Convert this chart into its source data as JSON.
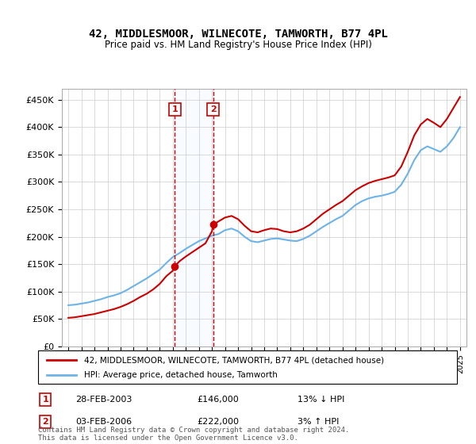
{
  "title": "42, MIDDLESMOOR, WILNECOTE, TAMWORTH, B77 4PL",
  "subtitle": "Price paid vs. HM Land Registry's House Price Index (HPI)",
  "legend_line1": "42, MIDDLESMOOR, WILNECOTE, TAMWORTH, B77 4PL (detached house)",
  "legend_line2": "HPI: Average price, detached house, Tamworth",
  "sale1_label": "1",
  "sale1_date": "28-FEB-2003",
  "sale1_price": "£146,000",
  "sale1_hpi": "13% ↓ HPI",
  "sale1_year": 2003.15,
  "sale1_value": 146000,
  "sale2_label": "2",
  "sale2_date": "03-FEB-2006",
  "sale2_price": "£222,000",
  "sale2_hpi": "3% ↑ HPI",
  "sale2_year": 2006.09,
  "sale2_value": 222000,
  "footer": "Contains HM Land Registry data © Crown copyright and database right 2024.\nThis data is licensed under the Open Government Licence v3.0.",
  "hpi_color": "#6db3e8",
  "price_color": "#cc0000",
  "marker_box_color": "#cc0000",
  "sale_marker_color": "#cc0000",
  "bg_color": "#ffffff",
  "grid_color": "#cccccc",
  "highlight_fill": "#ddeeff",
  "ylim": [
    0,
    470000
  ],
  "xlim": [
    1994.5,
    2025.5
  ],
  "hpi_data": {
    "years": [
      1995,
      1995.5,
      1996,
      1996.5,
      1997,
      1997.5,
      1998,
      1998.5,
      1999,
      1999.5,
      2000,
      2000.5,
      2001,
      2001.5,
      2002,
      2002.5,
      2003,
      2003.5,
      2004,
      2004.5,
      2005,
      2005.5,
      2006,
      2006.5,
      2007,
      2007.5,
      2008,
      2008.5,
      2009,
      2009.5,
      2010,
      2010.5,
      2011,
      2011.5,
      2012,
      2012.5,
      2013,
      2013.5,
      2014,
      2014.5,
      2015,
      2015.5,
      2016,
      2016.5,
      2017,
      2017.5,
      2018,
      2018.5,
      2019,
      2019.5,
      2020,
      2020.5,
      2021,
      2021.5,
      2022,
      2022.5,
      2023,
      2023.5,
      2024,
      2024.5,
      2025
    ],
    "values": [
      75000,
      76000,
      78000,
      80000,
      83000,
      86000,
      90000,
      93000,
      97000,
      103000,
      110000,
      117000,
      124000,
      132000,
      140000,
      152000,
      163000,
      170000,
      178000,
      185000,
      192000,
      197000,
      202000,
      205000,
      212000,
      215000,
      210000,
      200000,
      192000,
      190000,
      193000,
      196000,
      197000,
      195000,
      193000,
      192000,
      196000,
      202000,
      210000,
      218000,
      225000,
      232000,
      238000,
      248000,
      258000,
      265000,
      270000,
      273000,
      275000,
      278000,
      282000,
      295000,
      315000,
      340000,
      358000,
      365000,
      360000,
      355000,
      365000,
      380000,
      400000
    ]
  },
  "price_data": {
    "years": [
      1995,
      1995.5,
      1996,
      1996.5,
      1997,
      1997.5,
      1998,
      1998.5,
      1999,
      1999.5,
      2000,
      2000.5,
      2001,
      2001.5,
      2002,
      2002.5,
      2003,
      2003.15,
      2003.5,
      2004,
      2004.5,
      2005,
      2005.5,
      2006,
      2006.09,
      2006.5,
      2007,
      2007.5,
      2008,
      2008.5,
      2009,
      2009.5,
      2010,
      2010.5,
      2011,
      2011.5,
      2012,
      2012.5,
      2013,
      2013.5,
      2014,
      2014.5,
      2015,
      2015.5,
      2016,
      2016.5,
      2017,
      2017.5,
      2018,
      2018.5,
      2019,
      2019.5,
      2020,
      2020.5,
      2021,
      2021.5,
      2022,
      2022.5,
      2023,
      2023.5,
      2024,
      2024.5,
      2025
    ],
    "values": [
      52000,
      53000,
      55000,
      57000,
      59000,
      62000,
      65000,
      68000,
      72000,
      77000,
      83000,
      90000,
      96000,
      104000,
      114000,
      128000,
      138000,
      146000,
      155000,
      164000,
      172000,
      180000,
      188000,
      210000,
      222000,
      228000,
      235000,
      238000,
      232000,
      220000,
      210000,
      208000,
      212000,
      215000,
      214000,
      210000,
      208000,
      210000,
      215000,
      222000,
      232000,
      242000,
      250000,
      258000,
      265000,
      275000,
      285000,
      292000,
      298000,
      302000,
      305000,
      308000,
      312000,
      328000,
      355000,
      385000,
      405000,
      415000,
      408000,
      400000,
      415000,
      435000,
      455000
    ]
  }
}
